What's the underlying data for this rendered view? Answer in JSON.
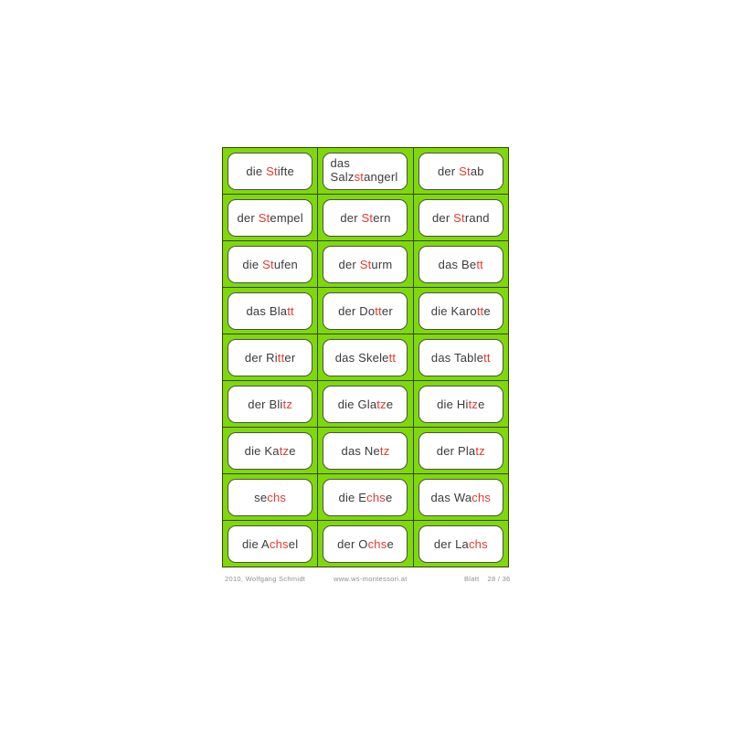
{
  "palette": {
    "green": "#7fd90a",
    "grid_line": "#39430b",
    "card_border": "#4d4d4d",
    "text": "#3b3b3b",
    "red": "#e23b2e",
    "footer_text": "#8f8f8f"
  },
  "cards": [
    {
      "lines": [
        [
          {
            "t": "die ",
            "r": false
          },
          {
            "t": "St",
            "r": true
          },
          {
            "t": "ifte",
            "r": false
          }
        ]
      ]
    },
    {
      "align": "left",
      "lines": [
        [
          {
            "t": "das",
            "r": false
          }
        ],
        [
          {
            "t": "Salz",
            "r": false
          },
          {
            "t": "st",
            "r": true
          },
          {
            "t": "angerl",
            "r": false
          }
        ]
      ]
    },
    {
      "lines": [
        [
          {
            "t": "der ",
            "r": false
          },
          {
            "t": "St",
            "r": true
          },
          {
            "t": "ab",
            "r": false
          }
        ]
      ]
    },
    {
      "lines": [
        [
          {
            "t": "der ",
            "r": false
          },
          {
            "t": "St",
            "r": true
          },
          {
            "t": "empel",
            "r": false
          }
        ]
      ]
    },
    {
      "lines": [
        [
          {
            "t": "der ",
            "r": false
          },
          {
            "t": "St",
            "r": true
          },
          {
            "t": "ern",
            "r": false
          }
        ]
      ]
    },
    {
      "lines": [
        [
          {
            "t": "der ",
            "r": false
          },
          {
            "t": "St",
            "r": true
          },
          {
            "t": "rand",
            "r": false
          }
        ]
      ]
    },
    {
      "lines": [
        [
          {
            "t": "die ",
            "r": false
          },
          {
            "t": "St",
            "r": true
          },
          {
            "t": "ufen",
            "r": false
          }
        ]
      ]
    },
    {
      "lines": [
        [
          {
            "t": "der ",
            "r": false
          },
          {
            "t": "St",
            "r": true
          },
          {
            "t": "urm",
            "r": false
          }
        ]
      ]
    },
    {
      "lines": [
        [
          {
            "t": "das Be",
            "r": false
          },
          {
            "t": "tt",
            "r": true
          }
        ]
      ]
    },
    {
      "lines": [
        [
          {
            "t": "das Bla",
            "r": false
          },
          {
            "t": "tt",
            "r": true
          }
        ]
      ]
    },
    {
      "lines": [
        [
          {
            "t": "der Do",
            "r": false
          },
          {
            "t": "tt",
            "r": true
          },
          {
            "t": "er",
            "r": false
          }
        ]
      ]
    },
    {
      "lines": [
        [
          {
            "t": "die Karo",
            "r": false
          },
          {
            "t": "tt",
            "r": true
          },
          {
            "t": "e",
            "r": false
          }
        ]
      ]
    },
    {
      "lines": [
        [
          {
            "t": "der Ri",
            "r": false
          },
          {
            "t": "tt",
            "r": true
          },
          {
            "t": "er",
            "r": false
          }
        ]
      ]
    },
    {
      "lines": [
        [
          {
            "t": "das Skele",
            "r": false
          },
          {
            "t": "tt",
            "r": true
          }
        ]
      ]
    },
    {
      "lines": [
        [
          {
            "t": "das Table",
            "r": false
          },
          {
            "t": "tt",
            "r": true
          }
        ]
      ]
    },
    {
      "lines": [
        [
          {
            "t": "der Bli",
            "r": false
          },
          {
            "t": "tz",
            "r": true
          }
        ]
      ]
    },
    {
      "lines": [
        [
          {
            "t": "die Gla",
            "r": false
          },
          {
            "t": "tz",
            "r": true
          },
          {
            "t": "e",
            "r": false
          }
        ]
      ]
    },
    {
      "lines": [
        [
          {
            "t": "die Hi",
            "r": false
          },
          {
            "t": "tz",
            "r": true
          },
          {
            "t": "e",
            "r": false
          }
        ]
      ]
    },
    {
      "lines": [
        [
          {
            "t": "die Ka",
            "r": false
          },
          {
            "t": "tz",
            "r": true
          },
          {
            "t": "e",
            "r": false
          }
        ]
      ]
    },
    {
      "lines": [
        [
          {
            "t": "das Ne",
            "r": false
          },
          {
            "t": "tz",
            "r": true
          }
        ]
      ]
    },
    {
      "lines": [
        [
          {
            "t": "der Pla",
            "r": false
          },
          {
            "t": "tz",
            "r": true
          }
        ]
      ]
    },
    {
      "lines": [
        [
          {
            "t": "se",
            "r": false
          },
          {
            "t": "chs",
            "r": true
          }
        ]
      ]
    },
    {
      "lines": [
        [
          {
            "t": "die E",
            "r": false
          },
          {
            "t": "chs",
            "r": true
          },
          {
            "t": "e",
            "r": false
          }
        ]
      ]
    },
    {
      "lines": [
        [
          {
            "t": "das Wa",
            "r": false
          },
          {
            "t": "chs",
            "r": true
          }
        ]
      ]
    },
    {
      "lines": [
        [
          {
            "t": "die A",
            "r": false
          },
          {
            "t": "chs",
            "r": true
          },
          {
            "t": "el",
            "r": false
          }
        ]
      ]
    },
    {
      "lines": [
        [
          {
            "t": "der O",
            "r": false
          },
          {
            "t": "chs",
            "r": true
          },
          {
            "t": "e",
            "r": false
          }
        ]
      ]
    },
    {
      "lines": [
        [
          {
            "t": "der La",
            "r": false
          },
          {
            "t": "chs",
            "r": true
          }
        ]
      ]
    }
  ],
  "footer": {
    "left": "2010, Wolfgang Schmidt",
    "center": "www.ws-montessori.at",
    "sheet_label": "Blatt",
    "sheet_number": "28 / 36"
  }
}
